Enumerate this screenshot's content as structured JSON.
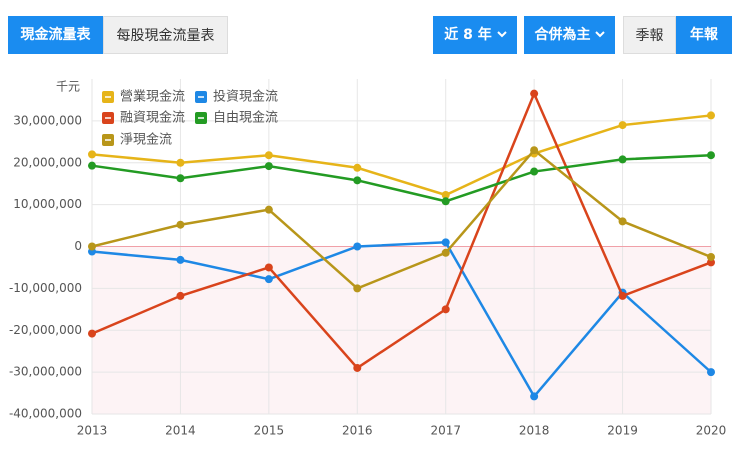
{
  "ui": {
    "tabs": [
      "現金流量表",
      "每股現金流量表"
    ],
    "controls": [
      "近 8 年",
      "合併為主",
      "季報",
      "年報"
    ]
  },
  "chart_data": {
    "type": "line",
    "y_unit": "千元",
    "categories": [
      "2013",
      "2014",
      "2015",
      "2016",
      "2017",
      "2018",
      "2019",
      "2020"
    ],
    "series": [
      {
        "name": "營業現金流",
        "color": "#e6b419",
        "values": [
          22000000,
          20000000,
          21800000,
          18800000,
          12300000,
          22200000,
          29000000,
          31300000
        ]
      },
      {
        "name": "投資現金流",
        "color": "#1e88e5",
        "values": [
          -1200000,
          -3200000,
          -7800000,
          0,
          1000000,
          -35800000,
          -11000000,
          -30000000
        ]
      },
      {
        "name": "融資現金流",
        "color": "#d9441c",
        "values": [
          -20800000,
          -11800000,
          -5000000,
          -29000000,
          -15000000,
          36500000,
          -11800000,
          -3800000
        ]
      },
      {
        "name": "自由現金流",
        "color": "#239b23",
        "values": [
          19300000,
          16300000,
          19200000,
          15800000,
          10800000,
          17900000,
          20800000,
          21800000
        ]
      },
      {
        "name": "淨現金流",
        "color": "#b8961a",
        "values": [
          0,
          5200000,
          8800000,
          -10000000,
          -1500000,
          23000000,
          6000000,
          -2500000
        ]
      }
    ],
    "ylim": [
      -40000000,
      40000000
    ],
    "yticks": [
      {
        "value": -40000000,
        "label": "-40,000,000"
      },
      {
        "value": -30000000,
        "label": "-30,000,000"
      },
      {
        "value": -20000000,
        "label": "-20,000,000"
      },
      {
        "value": -10000000,
        "label": "-10,000,000"
      },
      0,
      {
        "value": 10000000,
        "label": "10,000,000"
      },
      {
        "value": 20000000,
        "label": "20,000,000"
      },
      {
        "value": 30000000,
        "label": "30,000,000"
      }
    ],
    "grid": true,
    "legend": "top-left"
  }
}
